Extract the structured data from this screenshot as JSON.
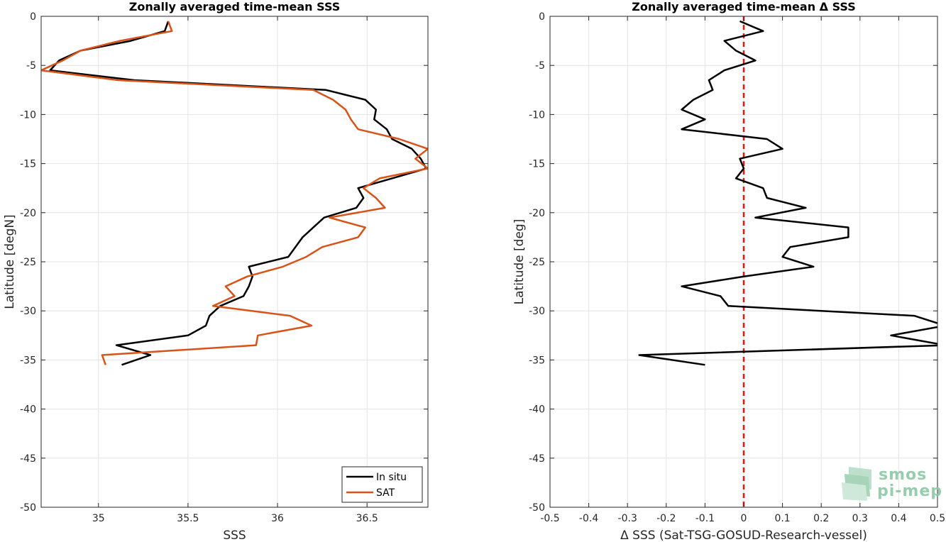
{
  "chart_data": [
    {
      "type": "line",
      "title": "Zonally averaged time-mean SSS",
      "xlabel": "SSS",
      "ylabel": "Latitude [degN]",
      "xlim": [
        34.68,
        36.84
      ],
      "ylim": [
        -50,
        0
      ],
      "xticks": [
        35,
        35.5,
        36,
        36.5
      ],
      "xtick_labels": [
        "35",
        "35.5",
        "36",
        "36.5"
      ],
      "yticks": [
        0,
        -5,
        -10,
        -15,
        -20,
        -25,
        -30,
        -35,
        -40,
        -45,
        -50
      ],
      "ytick_labels": [
        "0",
        "-5",
        "-10",
        "-15",
        "-20",
        "-25",
        "-30",
        "-35",
        "-40",
        "-45",
        "-50"
      ],
      "grid": true,
      "legend": "bottom-right",
      "series": [
        {
          "name": "In situ",
          "color": "#000000",
          "points": [
            [
              35.39,
              -0.5
            ],
            [
              35.37,
              -1.5
            ],
            [
              35.18,
              -2.5
            ],
            [
              34.9,
              -3.5
            ],
            [
              34.78,
              -4.5
            ],
            [
              34.73,
              -5.5
            ],
            [
              35.2,
              -6.5
            ],
            [
              36.27,
              -7.5
            ],
            [
              36.49,
              -8.5
            ],
            [
              36.55,
              -9.5
            ],
            [
              36.54,
              -10.5
            ],
            [
              36.61,
              -11.5
            ],
            [
              36.64,
              -12.5
            ],
            [
              36.75,
              -13.5
            ],
            [
              36.8,
              -14.5
            ],
            [
              36.83,
              -15.5
            ],
            [
              36.64,
              -16.5
            ],
            [
              36.45,
              -17.5
            ],
            [
              36.48,
              -18.5
            ],
            [
              36.44,
              -19.5
            ],
            [
              36.26,
              -20.5
            ],
            [
              36.2,
              -21.5
            ],
            [
              36.14,
              -22.5
            ],
            [
              36.1,
              -23.5
            ],
            [
              36.06,
              -24.5
            ],
            [
              35.84,
              -25.5
            ],
            [
              35.86,
              -26.5
            ],
            [
              35.84,
              -27.5
            ],
            [
              35.81,
              -28.5
            ],
            [
              35.68,
              -29.5
            ],
            [
              35.62,
              -30.5
            ],
            [
              35.6,
              -31.5
            ],
            [
              35.5,
              -32.5
            ],
            [
              35.1,
              -33.5
            ],
            [
              35.29,
              -34.5
            ],
            [
              35.13,
              -35.5
            ]
          ]
        },
        {
          "name": "SAT",
          "color": "#d95319",
          "points": [
            [
              35.39,
              -0.5
            ],
            [
              35.41,
              -1.5
            ],
            [
              35.12,
              -2.5
            ],
            [
              34.9,
              -3.5
            ],
            [
              34.8,
              -4.5
            ],
            [
              34.68,
              -5.5
            ],
            [
              35.11,
              -6.5
            ],
            [
              36.2,
              -7.5
            ],
            [
              36.31,
              -8.5
            ],
            [
              36.38,
              -9.5
            ],
            [
              36.41,
              -10.5
            ],
            [
              36.45,
              -11.5
            ],
            [
              36.68,
              -12.5
            ],
            [
              36.84,
              -13.5
            ],
            [
              36.77,
              -14.5
            ],
            [
              36.84,
              -15.5
            ],
            [
              36.57,
              -16.5
            ],
            [
              36.48,
              -17.5
            ],
            [
              36.55,
              -18.5
            ],
            [
              36.6,
              -19.5
            ],
            [
              36.29,
              -20.5
            ],
            [
              36.49,
              -21.5
            ],
            [
              36.45,
              -22.5
            ],
            [
              36.25,
              -23.5
            ],
            [
              36.16,
              -24.5
            ],
            [
              36.03,
              -25.5
            ],
            [
              35.83,
              -26.5
            ],
            [
              35.71,
              -27.5
            ],
            [
              35.76,
              -28.5
            ],
            [
              35.64,
              -29.5
            ],
            [
              36.07,
              -30.5
            ],
            [
              36.19,
              -31.5
            ],
            [
              35.89,
              -32.5
            ],
            [
              35.88,
              -33.5
            ],
            [
              35.02,
              -34.5
            ],
            [
              35.04,
              -35.5
            ]
          ]
        }
      ]
    },
    {
      "type": "line",
      "title": "Zonally averaged time-mean Δ SSS",
      "xlabel": "Δ SSS (Sat-TSG-GOSUD-Research-vessel)",
      "ylabel": "Latitude [deg]",
      "xlim": [
        -0.5,
        0.5
      ],
      "ylim": [
        -50,
        0
      ],
      "xticks": [
        -0.5,
        -0.4,
        -0.3,
        -0.2,
        -0.1,
        0,
        0.1,
        0.2,
        0.3,
        0.4,
        0.5
      ],
      "xtick_labels": [
        "-0.5",
        "-0.4",
        "-0.3",
        "-0.2",
        "-0.1",
        "0",
        "0.1",
        "0.2",
        "0.3",
        "0.4",
        "0.5"
      ],
      "yticks": [
        0,
        -5,
        -10,
        -15,
        -20,
        -25,
        -30,
        -35,
        -40,
        -45,
        -50
      ],
      "ytick_labels": [
        "0",
        "-5",
        "-10",
        "-15",
        "-20",
        "-25",
        "-30",
        "-35",
        "-40",
        "-45",
        "-50"
      ],
      "grid": true,
      "reference_line": {
        "x": 0,
        "color": "#ee1111",
        "style": "dashed"
      },
      "series": [
        {
          "color": "#000000",
          "points": [
            [
              -0.01,
              -0.5
            ],
            [
              0.05,
              -1.5
            ],
            [
              -0.05,
              -2.5
            ],
            [
              -0.02,
              -3.5
            ],
            [
              0.03,
              -4.5
            ],
            [
              -0.05,
              -5.5
            ],
            [
              -0.09,
              -6.5
            ],
            [
              -0.08,
              -7.5
            ],
            [
              -0.13,
              -8.5
            ],
            [
              -0.16,
              -9.5
            ],
            [
              -0.1,
              -10.5
            ],
            [
              -0.16,
              -11.5
            ],
            [
              0.06,
              -12.5
            ],
            [
              0.1,
              -13.5
            ],
            [
              -0.01,
              -14.5
            ],
            [
              0.0,
              -15.5
            ],
            [
              -0.02,
              -16.5
            ],
            [
              0.05,
              -17.5
            ],
            [
              0.06,
              -18.5
            ],
            [
              0.16,
              -19.5
            ],
            [
              0.03,
              -20.5
            ],
            [
              0.27,
              -21.5
            ],
            [
              0.27,
              -22.5
            ],
            [
              0.12,
              -23.5
            ],
            [
              0.1,
              -24.5
            ],
            [
              0.18,
              -25.5
            ],
            [
              0.0,
              -26.5
            ],
            [
              -0.16,
              -27.5
            ],
            [
              -0.06,
              -28.5
            ],
            [
              -0.04,
              -29.5
            ],
            [
              0.44,
              -30.5
            ],
            [
              0.52,
              -31.5
            ],
            [
              0.38,
              -32.5
            ],
            [
              0.52,
              -33.5
            ],
            [
              -0.27,
              -34.5
            ],
            [
              -0.1,
              -35.5
            ]
          ]
        }
      ]
    }
  ],
  "watermark": {
    "line1": "smos",
    "line2": "pi-mep"
  }
}
